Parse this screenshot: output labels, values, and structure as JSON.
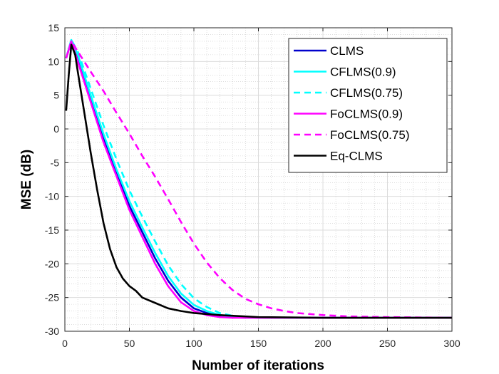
{
  "chart_data": {
    "type": "line",
    "xlabel": "Number of iterations",
    "ylabel": "MSE (dB)",
    "xlim": [
      0,
      300
    ],
    "ylim": [
      -30,
      15
    ],
    "xticks": [
      0,
      50,
      100,
      150,
      200,
      250,
      300
    ],
    "yticks": [
      -30,
      -25,
      -20,
      -15,
      -10,
      -5,
      0,
      5,
      10,
      15
    ],
    "grid": true,
    "minor_grid": true,
    "legend_position": "top-right",
    "series": [
      {
        "name": "CLMS",
        "color": "#0000cc",
        "dash": "solid",
        "x": [
          1,
          5,
          10,
          20,
          30,
          40,
          50,
          60,
          70,
          80,
          90,
          100,
          110,
          120,
          130,
          140,
          150,
          170,
          200,
          250,
          300
        ],
        "y": [
          10.5,
          13,
          10.5,
          4.5,
          -1.3,
          -6.5,
          -11.4,
          -15.3,
          -19.2,
          -22.5,
          -25.0,
          -26.6,
          -27.3,
          -27.7,
          -27.9,
          -28.0,
          -28.0,
          -28.0,
          -28.0,
          -28.0,
          -28.0
        ]
      },
      {
        "name": "CFLMS(0.9)",
        "color": "#00ffff",
        "dash": "solid",
        "x": [
          1,
          5,
          10,
          20,
          30,
          40,
          50,
          60,
          70,
          80,
          90,
          100,
          110,
          120,
          130,
          140,
          150,
          170,
          200,
          250,
          300
        ],
        "y": [
          10.5,
          13.2,
          11.0,
          5.0,
          -0.8,
          -6.0,
          -10.7,
          -14.6,
          -18.4,
          -21.8,
          -24.4,
          -26.1,
          -27.0,
          -27.6,
          -27.9,
          -28.0,
          -28.0,
          -28.0,
          -28.0,
          -28.0,
          -28.0
        ]
      },
      {
        "name": "CFLMS(0.75)",
        "color": "#00ffff",
        "dash": "dashed",
        "x": [
          1,
          5,
          10,
          20,
          30,
          40,
          50,
          60,
          70,
          80,
          90,
          100,
          110,
          120,
          130,
          140,
          150,
          170,
          200,
          250,
          300
        ],
        "y": [
          10.5,
          13.2,
          11.5,
          6.0,
          0.5,
          -4.5,
          -9.1,
          -13.0,
          -16.7,
          -20.2,
          -23.0,
          -25.1,
          -26.4,
          -27.3,
          -27.7,
          -27.9,
          -28.0,
          -28.0,
          -28.0,
          -28.0,
          -28.0
        ]
      },
      {
        "name": "FoCLMS(0.9)",
        "color": "#ff00ff",
        "dash": "solid",
        "x": [
          1,
          5,
          10,
          20,
          30,
          40,
          50,
          60,
          70,
          80,
          90,
          100,
          110,
          120,
          130,
          140,
          150,
          170,
          200,
          250,
          300
        ],
        "y": [
          10.5,
          13.0,
          10.0,
          4.0,
          -2.0,
          -7.0,
          -12.0,
          -16.0,
          -20.0,
          -23.3,
          -25.7,
          -27.0,
          -27.6,
          -27.9,
          -28.0,
          -28.0,
          -28.0,
          -28.0,
          -28.0,
          -28.0,
          -28.0
        ]
      },
      {
        "name": "FoCLMS(0.75)",
        "color": "#ff00ff",
        "dash": "dashed",
        "x": [
          1,
          5,
          10,
          20,
          30,
          40,
          50,
          60,
          70,
          80,
          90,
          100,
          110,
          120,
          130,
          140,
          150,
          160,
          170,
          180,
          200,
          220,
          250,
          300
        ],
        "y": [
          10.5,
          13.0,
          11.5,
          8.5,
          5.6,
          2.4,
          -0.7,
          -4.0,
          -7.1,
          -10.4,
          -13.8,
          -17.0,
          -19.8,
          -22.1,
          -23.9,
          -25.2,
          -26.0,
          -26.6,
          -27.0,
          -27.3,
          -27.6,
          -27.8,
          -27.9,
          -28.0
        ]
      },
      {
        "name": "Eq-CLMS",
        "color": "#000000",
        "dash": "solid",
        "x": [
          1,
          3,
          5,
          8,
          10,
          15,
          20,
          25,
          30,
          35,
          40,
          45,
          50,
          55,
          60,
          70,
          80,
          90,
          100,
          120,
          150,
          200,
          250,
          300
        ],
        "y": [
          2.7,
          8.0,
          12.5,
          11.0,
          8.5,
          2.5,
          -3.5,
          -9.0,
          -14.0,
          -17.8,
          -20.5,
          -22.2,
          -23.3,
          -24.0,
          -25.0,
          -25.8,
          -26.6,
          -27.0,
          -27.3,
          -27.6,
          -27.9,
          -28.0,
          -28.0,
          -28.0
        ]
      }
    ]
  }
}
